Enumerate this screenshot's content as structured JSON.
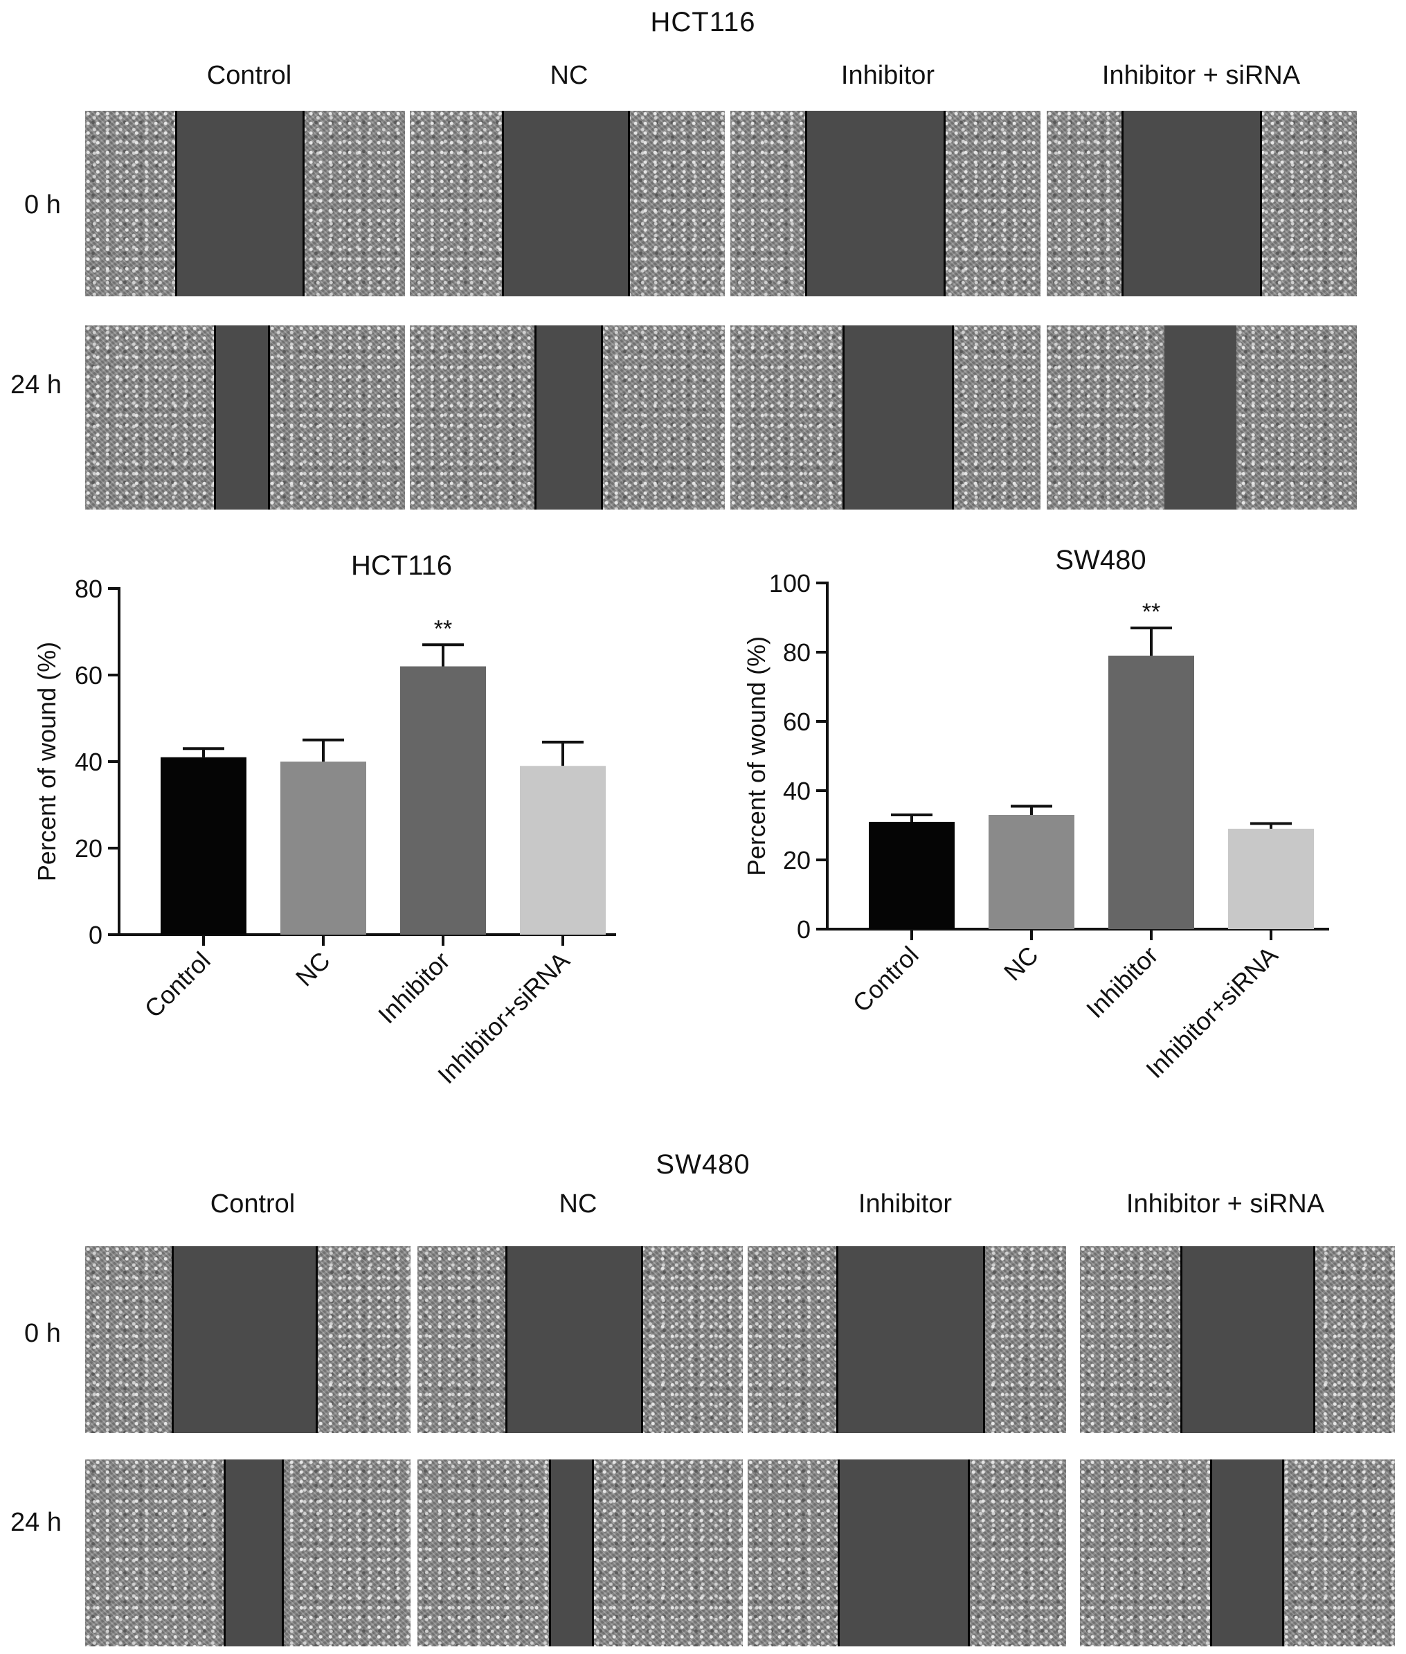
{
  "hct116_images": {
    "title": "HCT116",
    "columns": [
      "Control",
      "NC",
      "Inhibitor",
      "Inhibitor + siRNA"
    ],
    "rows": [
      "0 h",
      "24 h"
    ]
  },
  "sw480_images": {
    "title": "SW480",
    "columns": [
      "Control",
      "NC",
      "Inhibitor",
      "Inhibitor + siRNA"
    ],
    "rows": [
      "0 h",
      "24 h"
    ]
  },
  "chart_data": [
    {
      "type": "bar",
      "title": "HCT116",
      "categories": [
        "Control",
        "NC",
        "Inhibitor",
        "Inhibitor+siRNA"
      ],
      "values": [
        41,
        40,
        62,
        39
      ],
      "errors": [
        2,
        5,
        5,
        5.5
      ],
      "significance": [
        "",
        "",
        "**",
        ""
      ],
      "bar_colors": [
        "#050505",
        "#8a8a8a",
        "#666666",
        "#c8c8c8"
      ],
      "xlabel": "",
      "ylabel": "Percent of wound (%)",
      "ylim": [
        0,
        80
      ],
      "yticks": [
        0,
        20,
        40,
        60,
        80
      ],
      "grid": false
    },
    {
      "type": "bar",
      "title": "SW480",
      "categories": [
        "Control",
        "NC",
        "Inhibitor",
        "Inhibitor+siRNA"
      ],
      "values": [
        31,
        33,
        79,
        29
      ],
      "errors": [
        2,
        2.5,
        8,
        1.5
      ],
      "significance": [
        "",
        "",
        "**",
        ""
      ],
      "bar_colors": [
        "#050505",
        "#8a8a8a",
        "#666666",
        "#c8c8c8"
      ],
      "xlabel": "",
      "ylabel": "Percent of wound (%)",
      "ylim": [
        0,
        100
      ],
      "yticks": [
        0,
        20,
        40,
        60,
        80,
        100
      ],
      "grid": false
    }
  ]
}
